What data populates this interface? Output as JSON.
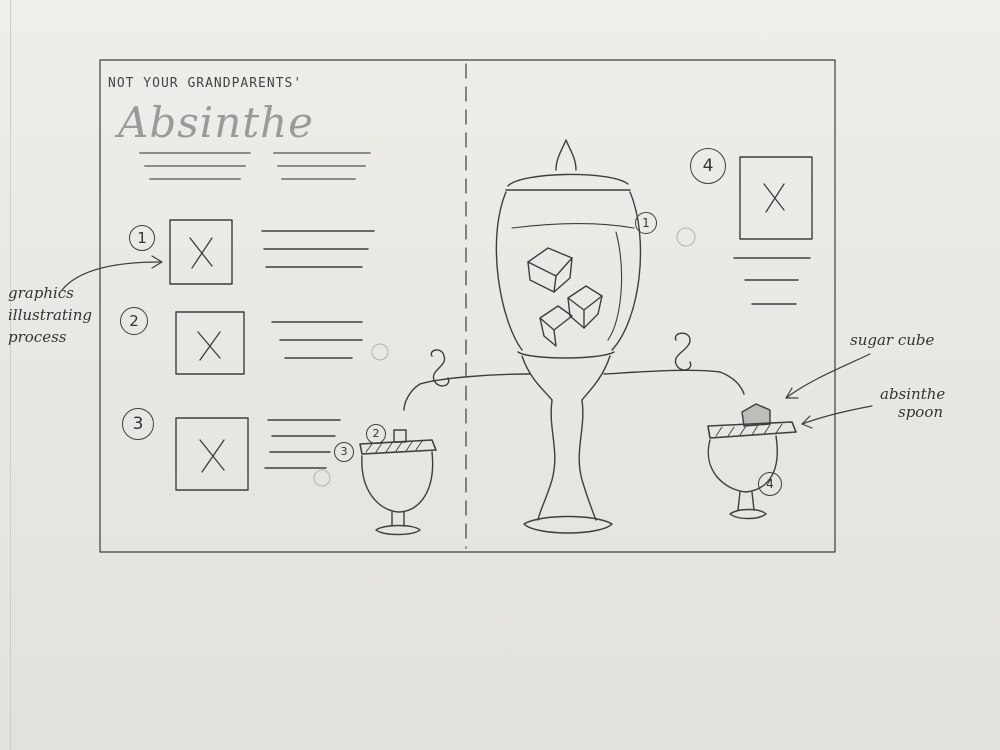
{
  "header": {
    "kicker": "NOT YOUR GRANDPARENTS'",
    "title": "Absinthe"
  },
  "left_column": {
    "steps": [
      {
        "number": "1"
      },
      {
        "number": "2"
      },
      {
        "number": "3"
      }
    ],
    "note": "graphics illustrating process"
  },
  "right_column": {
    "step_number": "4"
  },
  "illustration": {
    "fountain_step": "1",
    "left_glass_steps": [
      "2",
      "3"
    ],
    "right_glass_step": "4",
    "callouts": {
      "sugar_cube": "sugar cube",
      "spoon_line1": "absinthe",
      "spoon_line2": "spoon"
    }
  }
}
